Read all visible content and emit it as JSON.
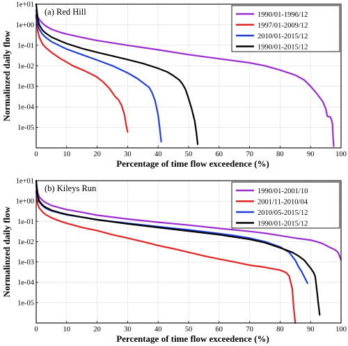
{
  "chart_data": [
    {
      "type": "line",
      "title": "(a) Red Hill",
      "xlabel": "Percentage of time flow exceedence (%)",
      "ylabel": "Normalinzed daily flow",
      "xlim": [
        0,
        100
      ],
      "ylim": [
        1e-06,
        10
      ],
      "yscale": "log",
      "xticks": [
        "0",
        "10",
        "20",
        "30",
        "40",
        "50",
        "60",
        "70",
        "80",
        "90",
        "100"
      ],
      "yticks": [
        "1e+01",
        "1e+00",
        "1e-01",
        "1e-02",
        "1e-03",
        "1e-04",
        "1e-05"
      ],
      "grid": true,
      "legend_position": "top-right",
      "series": [
        {
          "name": "1990/01-1996/12",
          "color": "#9a2ccf",
          "x": [
            0,
            0.5,
            1,
            2,
            3,
            5,
            8,
            10,
            15,
            20,
            30,
            40,
            50,
            60,
            70,
            75,
            80,
            85,
            88,
            90,
            92,
            94,
            95,
            95.5,
            96,
            96.5,
            96.8,
            97.2,
            97.4,
            97.6
          ],
          "y": [
            5,
            2.5,
            1.8,
            1.2,
            0.9,
            0.6,
            0.42,
            0.35,
            0.24,
            0.17,
            0.1,
            0.06,
            0.035,
            0.022,
            0.014,
            0.01,
            0.0062,
            0.0035,
            0.002,
            0.001,
            0.00045,
            0.00018,
            8e-05,
            3.5e-05,
            3.3e-05,
            3.2e-05,
            2.5e-05,
            1.5e-05,
            3e-06,
            1.2e-06
          ]
        },
        {
          "name": "1997/01-2009/12",
          "color": "#e32222",
          "x": [
            0,
            0.5,
            1,
            2,
            3,
            5,
            8,
            10,
            12,
            15,
            18,
            20,
            22,
            24,
            26,
            27,
            28,
            29,
            29.5,
            30
          ],
          "y": [
            2.5,
            0.5,
            0.25,
            0.12,
            0.08,
            0.045,
            0.022,
            0.015,
            0.01,
            0.0065,
            0.004,
            0.0028,
            0.0016,
            0.0008,
            0.0003,
            0.00022,
            0.00012,
            4e-05,
            1.3e-05,
            6e-06
          ]
        },
        {
          "name": "2010/01-2015/12",
          "color": "#1f3fd6",
          "x": [
            0,
            0.5,
            1,
            2,
            3,
            5,
            8,
            10,
            15,
            20,
            25,
            30,
            33,
            35,
            37,
            38,
            39,
            40,
            40.5,
            41
          ],
          "y": [
            3,
            1,
            0.6,
            0.35,
            0.25,
            0.15,
            0.09,
            0.065,
            0.035,
            0.019,
            0.01,
            0.0045,
            0.0025,
            0.0015,
            0.0009,
            0.0005,
            0.0002,
            4e-05,
            1e-05,
            2e-06
          ]
        },
        {
          "name": "1990/01-2015/12",
          "color": "#000000",
          "x": [
            0,
            0.5,
            1,
            2,
            3,
            5,
            8,
            10,
            15,
            20,
            25,
            30,
            35,
            40,
            43,
            45,
            47,
            48,
            49,
            50,
            51,
            52,
            52.5,
            53
          ],
          "y": [
            10,
            2,
            1,
            0.55,
            0.4,
            0.25,
            0.16,
            0.12,
            0.07,
            0.045,
            0.03,
            0.02,
            0.013,
            0.0075,
            0.005,
            0.0033,
            0.002,
            0.0013,
            0.0007,
            0.00025,
            8e-05,
            2e-05,
            6e-06,
            1.5e-06
          ]
        }
      ]
    },
    {
      "type": "line",
      "title": "(b) Kileys Run",
      "xlabel": "Percentage of time flow exceedence (%)",
      "ylabel": "Normalinzed daily flow",
      "xlim": [
        0,
        100
      ],
      "ylim": [
        1e-06,
        10
      ],
      "yscale": "log",
      "xticks": [
        "0",
        "10",
        "20",
        "30",
        "40",
        "50",
        "60",
        "70",
        "80",
        "90",
        "100"
      ],
      "yticks": [
        "1e+01",
        "1e+00",
        "1e-01",
        "1e-02",
        "1e-03",
        "1e-04",
        "1e-05"
      ],
      "grid": true,
      "legend_position": "top-right",
      "series": [
        {
          "name": "1990/01-2001/10",
          "color": "#9a2ccf",
          "x": [
            0,
            0.5,
            1,
            2,
            3,
            5,
            8,
            10,
            15,
            20,
            30,
            40,
            50,
            60,
            70,
            75,
            80,
            85,
            90,
            92,
            94,
            96,
            98,
            99,
            99.5,
            100
          ],
          "y": [
            8,
            2.5,
            1.6,
            1.1,
            0.85,
            0.6,
            0.45,
            0.38,
            0.28,
            0.2,
            0.13,
            0.09,
            0.065,
            0.045,
            0.032,
            0.026,
            0.02,
            0.015,
            0.012,
            0.01,
            0.008,
            0.0055,
            0.004,
            0.003,
            0.002,
            0.0013
          ]
        },
        {
          "name": "2001/11-2010/04",
          "color": "#e32222",
          "x": [
            0,
            0.5,
            1,
            2,
            3,
            5,
            8,
            10,
            15,
            20,
            25,
            30,
            35,
            40,
            45,
            50,
            55,
            60,
            65,
            70,
            75,
            78,
            80,
            82,
            83,
            84,
            84.5,
            85
          ],
          "y": [
            3,
            0.7,
            0.45,
            0.3,
            0.22,
            0.15,
            0.1,
            0.08,
            0.05,
            0.035,
            0.022,
            0.015,
            0.01,
            0.0065,
            0.0045,
            0.003,
            0.002,
            0.0014,
            0.001,
            0.0007,
            0.00055,
            0.00045,
            0.0004,
            0.0003,
            0.0002,
            5e-05,
            5e-06,
            5e-07
          ]
        },
        {
          "name": "2010/05-2015/12",
          "color": "#1f3fd6",
          "x": [
            0,
            0.5,
            1,
            2,
            3,
            5,
            8,
            10,
            15,
            20,
            30,
            40,
            50,
            60,
            65,
            70,
            75,
            80,
            83,
            85,
            86,
            87,
            88,
            89
          ],
          "y": [
            6,
            1.5,
            0.9,
            0.6,
            0.45,
            0.33,
            0.25,
            0.21,
            0.16,
            0.12,
            0.08,
            0.055,
            0.038,
            0.025,
            0.02,
            0.015,
            0.01,
            0.0055,
            0.003,
            0.0012,
            0.0006,
            0.00035,
            0.00018,
            9e-05
          ]
        },
        {
          "name": "1990/01-2015/12",
          "color": "#000000",
          "x": [
            0,
            0.5,
            1,
            2,
            3,
            5,
            8,
            10,
            15,
            20,
            30,
            40,
            50,
            60,
            70,
            75,
            80,
            84,
            86,
            88,
            90,
            91,
            91.5,
            92,
            92.5,
            93
          ],
          "y": [
            10,
            1.8,
            1,
            0.65,
            0.5,
            0.35,
            0.26,
            0.22,
            0.16,
            0.12,
            0.075,
            0.05,
            0.033,
            0.022,
            0.013,
            0.009,
            0.005,
            0.003,
            0.002,
            0.0012,
            0.0005,
            0.0003,
            0.0002,
            5e-05,
            1e-05,
            2.5e-06
          ]
        }
      ]
    }
  ]
}
